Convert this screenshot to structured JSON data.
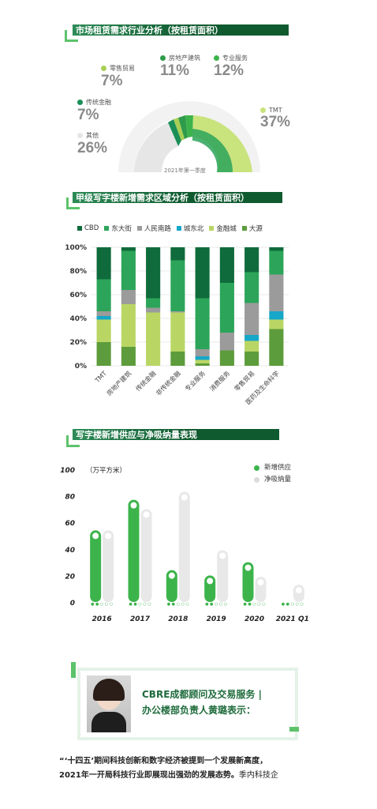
{
  "sections": {
    "s1_title": "市场租赁需求行业分析（按租赁面积）",
    "s2_title": "甲级写字楼新增需求区域分析（按租赁面积）",
    "s3_title": "写字楼新增供应与净吸纳量表现"
  },
  "pie": {
    "caption": "2021年第一季度",
    "items": [
      {
        "label": "零售贸易",
        "pct": "7%",
        "color": "#a9cf54"
      },
      {
        "label": "房地产建筑",
        "pct": "11%",
        "color": "#2e9b4a"
      },
      {
        "label": "专业服务",
        "pct": "12%",
        "color": "#3cb44b"
      },
      {
        "label": "传统金融",
        "pct": "7%",
        "color": "#1b8f57"
      },
      {
        "label": "其他",
        "pct": "26%",
        "color": "#e6e6e6"
      },
      {
        "label": "TMT",
        "pct": "37%",
        "color": "#c9e37d"
      }
    ]
  },
  "chart_data": [
    {
      "type": "bar",
      "stacked": true,
      "categories": [
        "TMT",
        "房地产建筑",
        "传统金融",
        "非传统金融",
        "专业服务",
        "消费服务",
        "零售贸易",
        "医药及生命科学"
      ],
      "ylim": [
        0,
        100
      ],
      "yticks": [
        "0%",
        "20%",
        "40%",
        "60%",
        "80%",
        "100%"
      ],
      "series": [
        {
          "name": "大源",
          "color": "#5d9c3c",
          "values": [
            20,
            16,
            0,
            12,
            2,
            13,
            12,
            31
          ]
        },
        {
          "name": "金融城",
          "color": "#b9d665",
          "values": [
            19,
            36,
            45,
            33,
            3,
            0,
            9,
            8
          ]
        },
        {
          "name": "城东北",
          "color": "#17a7c8",
          "values": [
            3,
            0,
            0,
            0,
            3,
            0,
            5,
            7
          ]
        },
        {
          "name": "人民南路",
          "color": "#9b9b9b",
          "values": [
            4,
            12,
            4,
            1,
            6,
            15,
            27,
            31
          ]
        },
        {
          "name": "东大街",
          "color": "#2ca55a",
          "values": [
            27,
            33,
            8,
            43,
            43,
            42,
            26,
            20
          ]
        },
        {
          "name": "CBD",
          "color": "#0f6b3b",
          "values": [
            27,
            3,
            43,
            11,
            43,
            30,
            21,
            3
          ]
        }
      ]
    },
    {
      "type": "bar",
      "categories": [
        "2016",
        "2017",
        "2018",
        "2019",
        "2020",
        "2021 Q1"
      ],
      "ylabel": "（万平方米）",
      "ylim": [
        0,
        100
      ],
      "yticks": [
        "0",
        "20",
        "40",
        "60",
        "80",
        "100"
      ],
      "series": [
        {
          "name": "新增供应",
          "color": "#3cb44b",
          "values": [
            54,
            77,
            24,
            20,
            30,
            0
          ]
        },
        {
          "name": "净吸纳量",
          "color": "#e6e6e6",
          "values": [
            54,
            70,
            83,
            39,
            19,
            13
          ]
        }
      ]
    }
  ],
  "profile": {
    "title_line1": "CBRE成都顾问及交易服务 |",
    "title_line2": "办公楼部负责人黄璐表示："
  },
  "quote": {
    "line1": "“‘十四五’期间科技创新和数字经济被提到一个发展新高度，",
    "line2_bold": "2021年一开局科技行业即展现出强劲的发展态势。",
    "line2_rest": "季内科技企"
  }
}
